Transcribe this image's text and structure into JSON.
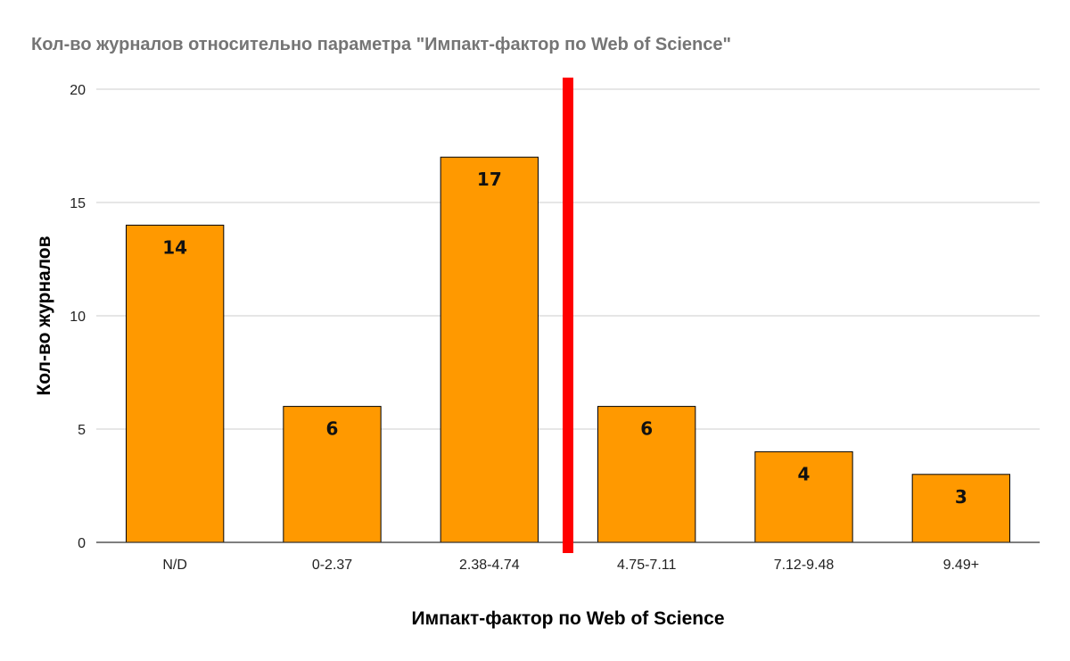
{
  "chart_data": {
    "type": "bar",
    "title": "Кол-во журналов относительно параметра \"Импакт-фактор по Web of Science\"",
    "xlabel": "Импакт-фактор по Web of Science",
    "ylabel": "Кол-во журналов",
    "categories": [
      "N/D",
      "0-2.37",
      "2.38-4.74",
      "4.75-7.11",
      "7.12-9.48",
      "9.49+"
    ],
    "values": [
      14,
      6,
      17,
      6,
      4,
      3
    ],
    "data_labels": [
      "14",
      "6",
      "17",
      "6",
      "4",
      "3"
    ],
    "ylim": [
      0,
      20
    ],
    "yticks": [
      0,
      5,
      10,
      15,
      20
    ],
    "ytick_labels": [
      "0",
      "5",
      "10",
      "15",
      "20"
    ],
    "grid": true,
    "legend": "none",
    "bar_color": "#ff9900",
    "divider": {
      "after_category_index": 2,
      "color": "#ff0000"
    }
  }
}
